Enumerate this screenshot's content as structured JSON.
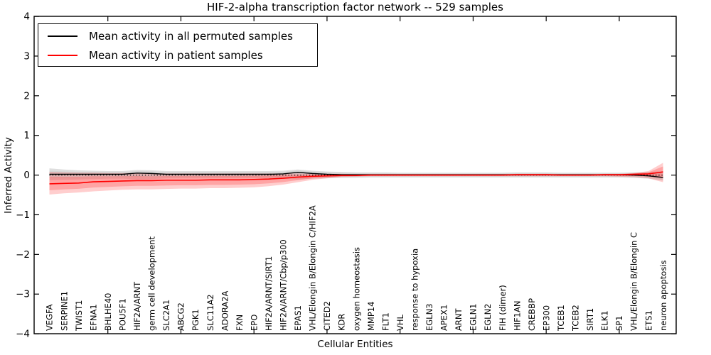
{
  "title": "HIF-2-alpha transcription factor network -- 529 samples",
  "colors": {
    "permuted_line": "#000000",
    "patient_line": "#ff0000",
    "permuted_band": "#a8a8a8",
    "patient_band": "#ff5050",
    "axis": "#000000",
    "background": "#ffffff"
  },
  "chart_data": {
    "type": "line",
    "title": "HIF-2-alpha transcription factor network -- 529 samples",
    "xlabel": "Cellular Entities",
    "ylabel": "Inferred Activity",
    "ylim": [
      -4,
      4
    ],
    "ytick_values": [
      4,
      3,
      2,
      1,
      0,
      -1,
      -2,
      -3,
      -4
    ],
    "ytick_labels": [
      "4",
      "3",
      "2",
      "1",
      "0",
      "−1",
      "−2",
      "−3",
      "−4"
    ],
    "xtick_category_indices": [
      4,
      9,
      14,
      19,
      24,
      29,
      34,
      39
    ],
    "grid": "off",
    "legend_position": "upper-left",
    "zero_line": {
      "y": 0,
      "style": "dotted",
      "color": "#000000"
    },
    "categories": [
      "VEGFA",
      "SERPINE1",
      "TWIST1",
      "EFNA1",
      "BHLHE40",
      "POU5F1",
      "HIF2A/ARNT",
      "germ cell development",
      "SLC2A1",
      "ABCG2",
      "PGK1",
      "SLC11A2",
      "ADORA2A",
      "FXN",
      "EPO",
      "HIF2A/ARNT/SIRT1",
      "HIF2A/ARNT/Cbp/p300",
      "EPAS1",
      "VHL/Elongin B/Elongin C/HIF2A",
      "CITED2",
      "KDR",
      "oxygen homeostasis",
      "MMP14",
      "FLT1",
      "VHL",
      "response to hypoxia",
      "EGLN3",
      "APEX1",
      "ARNT",
      "EGLN1",
      "EGLN2",
      "FIH (dimer)",
      "HIF1AN",
      "CREBBP",
      "EP300",
      "TCEB1",
      "TCEB2",
      "SIRT1",
      "ELK1",
      "SP1",
      "VHL/Elongin B/Elongin C",
      "ETS1",
      "neuron apoptosis"
    ],
    "series": [
      {
        "name": "Mean activity in all permuted samples",
        "color": "#000000",
        "band_color": "#a8a8a8",
        "values": [
          0.02,
          0.02,
          0.02,
          0.02,
          0.02,
          0.02,
          0.05,
          0.04,
          0.02,
          0.02,
          0.02,
          0.02,
          0.02,
          0.02,
          0.02,
          0.02,
          0.03,
          0.07,
          0.04,
          0.02,
          0.01,
          0.01,
          0.01,
          0.01,
          0.01,
          0.01,
          0.01,
          0.01,
          0.01,
          0.01,
          0.01,
          0.01,
          0.01,
          0.01,
          0.01,
          0.01,
          0.01,
          0.01,
          0.01,
          0.01,
          0.0,
          -0.02,
          -0.06
        ],
        "band_high": [
          0.17,
          0.14,
          0.12,
          0.11,
          0.1,
          0.1,
          0.13,
          0.12,
          0.1,
          0.1,
          0.1,
          0.1,
          0.1,
          0.1,
          0.1,
          0.1,
          0.11,
          0.14,
          0.11,
          0.09,
          0.08,
          0.07,
          0.07,
          0.07,
          0.06,
          0.06,
          0.06,
          0.06,
          0.06,
          0.06,
          0.06,
          0.06,
          0.07,
          0.07,
          0.07,
          0.06,
          0.06,
          0.06,
          0.06,
          0.06,
          0.07,
          0.08,
          0.1
        ],
        "band_low": [
          -0.13,
          -0.12,
          -0.11,
          -0.1,
          -0.09,
          -0.09,
          -0.11,
          -0.1,
          -0.08,
          -0.08,
          -0.08,
          -0.08,
          -0.08,
          -0.08,
          -0.08,
          -0.08,
          -0.09,
          -0.11,
          -0.09,
          -0.08,
          -0.07,
          -0.07,
          -0.06,
          -0.06,
          -0.06,
          -0.06,
          -0.06,
          -0.06,
          -0.06,
          -0.06,
          -0.06,
          -0.06,
          -0.06,
          -0.06,
          -0.06,
          -0.06,
          -0.06,
          -0.06,
          -0.06,
          -0.06,
          -0.07,
          -0.09,
          -0.14
        ]
      },
      {
        "name": "Mean activity in patient samples",
        "color": "#ff0000",
        "band_color": "#ff5050",
        "values": [
          -0.22,
          -0.21,
          -0.2,
          -0.17,
          -0.16,
          -0.15,
          -0.14,
          -0.14,
          -0.13,
          -0.13,
          -0.13,
          -0.12,
          -0.12,
          -0.12,
          -0.11,
          -0.1,
          -0.08,
          -0.05,
          -0.03,
          -0.02,
          -0.01,
          -0.01,
          0.0,
          0.0,
          0.0,
          0.0,
          0.0,
          0.0,
          0.0,
          0.0,
          0.0,
          0.0,
          0.01,
          0.01,
          0.01,
          0.0,
          0.0,
          0.0,
          0.01,
          0.01,
          0.02,
          0.03,
          0.08
        ],
        "band_high": [
          0.08,
          0.07,
          0.06,
          0.06,
          0.05,
          0.05,
          0.05,
          0.04,
          0.04,
          0.04,
          0.04,
          0.04,
          0.04,
          0.04,
          0.04,
          0.04,
          0.04,
          0.04,
          0.03,
          0.03,
          0.03,
          0.02,
          0.02,
          0.02,
          0.02,
          0.02,
          0.02,
          0.02,
          0.02,
          0.02,
          0.02,
          0.02,
          0.03,
          0.03,
          0.03,
          0.02,
          0.02,
          0.02,
          0.03,
          0.03,
          0.05,
          0.1,
          0.31
        ],
        "band_low": [
          -0.49,
          -0.46,
          -0.44,
          -0.41,
          -0.39,
          -0.37,
          -0.36,
          -0.36,
          -0.35,
          -0.34,
          -0.34,
          -0.33,
          -0.33,
          -0.32,
          -0.31,
          -0.28,
          -0.24,
          -0.18,
          -0.12,
          -0.08,
          -0.05,
          -0.04,
          -0.03,
          -0.03,
          -0.03,
          -0.03,
          -0.03,
          -0.03,
          -0.03,
          -0.03,
          -0.03,
          -0.03,
          -0.03,
          -0.03,
          -0.03,
          -0.03,
          -0.03,
          -0.03,
          -0.03,
          -0.04,
          -0.05,
          -0.08,
          -0.18
        ]
      }
    ]
  }
}
